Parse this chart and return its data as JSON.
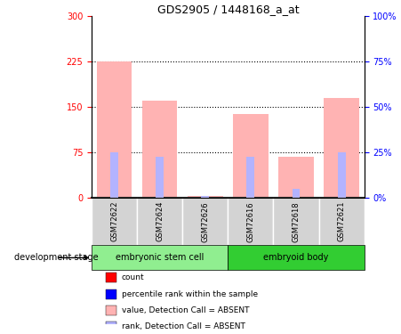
{
  "title": "GDS2905 / 1448168_a_at",
  "samples": [
    "GSM72622",
    "GSM72624",
    "GSM72626",
    "GSM72616",
    "GSM72618",
    "GSM72621"
  ],
  "groups": {
    "embryonic stem cell": [
      0,
      1,
      2
    ],
    "embryoid body": [
      3,
      4,
      5
    ]
  },
  "values_absent": [
    225,
    160,
    3,
    138,
    68,
    165
  ],
  "rank_absent": [
    75,
    68,
    2,
    67,
    14,
    75
  ],
  "ylim_left": [
    0,
    300
  ],
  "ylim_right": [
    0,
    100
  ],
  "yticks_left": [
    0,
    75,
    150,
    225,
    300
  ],
  "yticks_right": [
    0,
    25,
    50,
    75,
    100
  ],
  "ytick_labels_left": [
    "0",
    "75",
    "150",
    "225",
    "300"
  ],
  "ytick_labels_right": [
    "0%",
    "25%",
    "50%",
    "75%",
    "100%"
  ],
  "hlines": [
    75,
    150,
    225
  ],
  "bar_width": 0.4,
  "color_value_absent": "#FFB3B3",
  "color_rank_absent": "#B3B3FF",
  "color_count": "#FF0000",
  "color_rank": "#0000FF",
  "group_colors": {
    "embryonic stem cell": "#90EE90",
    "embryoid body": "#32CD32"
  },
  "legend_items": [
    {
      "label": "count",
      "color": "#FF0000",
      "marker": "s"
    },
    {
      "label": "percentile rank within the sample",
      "color": "#0000FF",
      "marker": "s"
    },
    {
      "label": "value, Detection Call = ABSENT",
      "color": "#FFB3B3",
      "marker": "s"
    },
    {
      "label": "rank, Detection Call = ABSENT",
      "color": "#B3B3FF",
      "marker": "s"
    }
  ],
  "xlabel_group": "development stage",
  "axis_label_color_left": "#FF0000",
  "axis_label_color_right": "#0000FF",
  "tick_bg_color": "#D3D3D3"
}
